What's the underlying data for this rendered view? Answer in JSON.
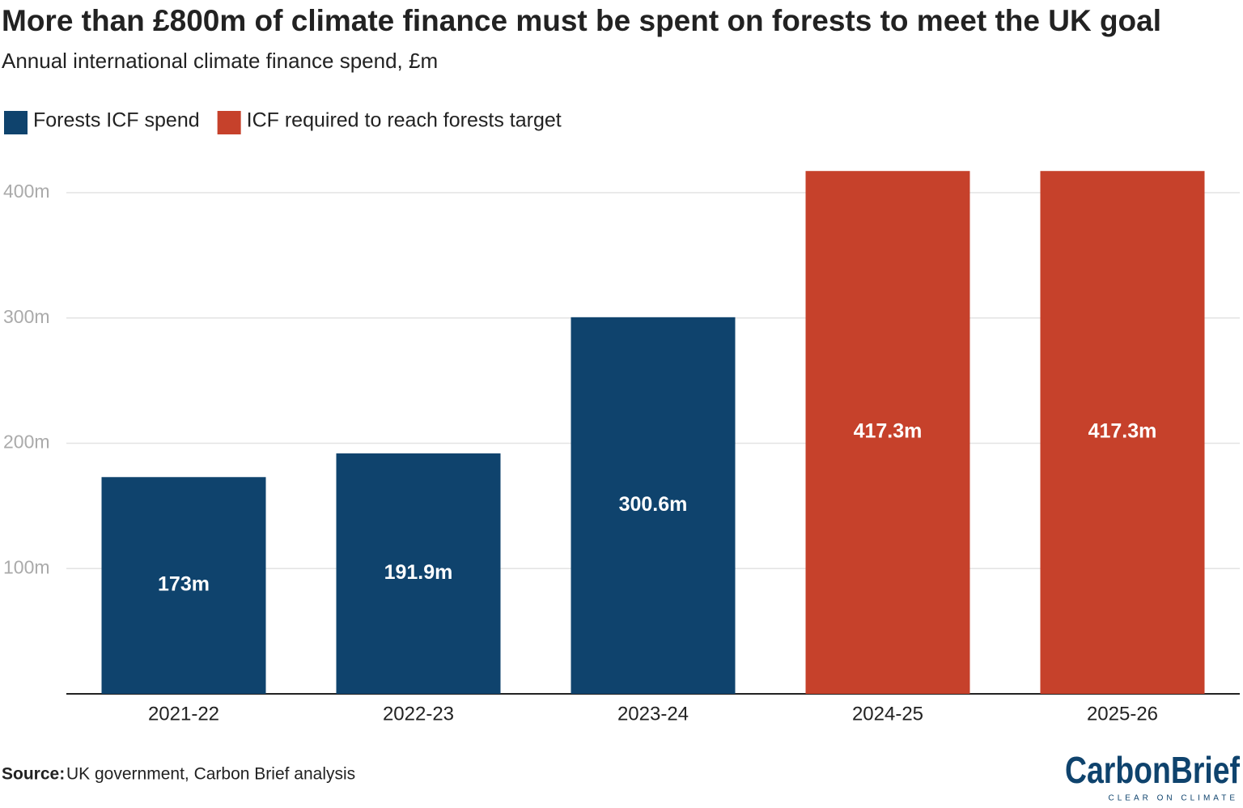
{
  "chart_data": {
    "type": "bar",
    "title": "More than £800m of climate finance must be spent on forests to meet the UK goal",
    "subtitle": "Annual international climate finance spend, £m",
    "categories": [
      "2021-22",
      "2022-23",
      "2023-24",
      "2024-25",
      "2025-26"
    ],
    "series": [
      {
        "name": "Forests ICF spend",
        "color": "#0f436d",
        "values": [
          173,
          191.9,
          300.6,
          null,
          null
        ],
        "value_labels": [
          "173m",
          "191.9m",
          "300.6m",
          null,
          null
        ]
      },
      {
        "name": "ICF required to reach forests target",
        "color": "#c6412b",
        "values": [
          null,
          null,
          null,
          417.3,
          417.3
        ],
        "value_labels": [
          null,
          null,
          null,
          "417.3m",
          "417.3m"
        ]
      }
    ],
    "ylim": [
      0,
      425
    ],
    "yticks": [
      {
        "value": 100,
        "label": "100m"
      },
      {
        "value": 200,
        "label": "200m"
      },
      {
        "value": 300,
        "label": "300m"
      },
      {
        "value": 400,
        "label": "400m"
      }
    ],
    "grid": true,
    "legend": "top-left",
    "source_label": "Source:",
    "source": "UK government, Carbon Brief analysis",
    "logo": "CarbonBrief",
    "logo_tagline": "CLEAR ON CLIMATE"
  }
}
